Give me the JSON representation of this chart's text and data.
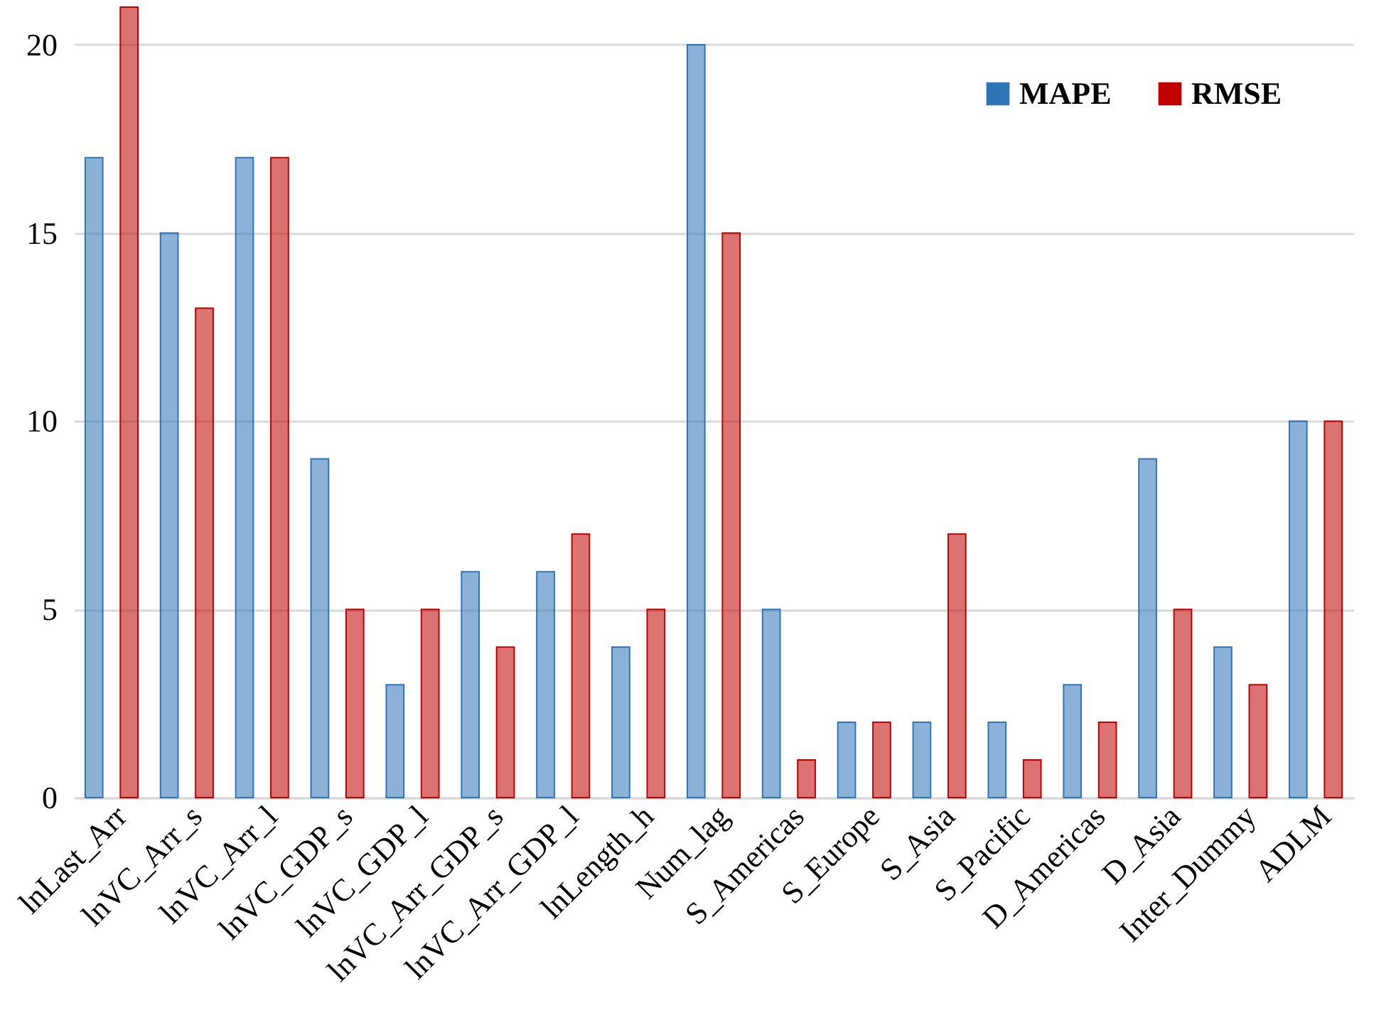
{
  "chart_data": {
    "type": "bar",
    "categories": [
      "lnLast_Arr",
      "lnVC_Arr_s",
      "lnVC_Arr_l",
      "lnVC_GDP_s",
      "lnVC_GDP_l",
      "lnVC_Arr_GDP_s",
      "lnVC_Arr_GDP_l",
      "lnLength_h",
      "Num_lag",
      "S_Americas",
      "S_Europe",
      "S_Asia",
      "S_Pacific",
      "D_Americas",
      "D_Asia",
      "Inter_Dummy",
      "ADLM"
    ],
    "series": [
      {
        "name": "MAPE",
        "color": "#2e75b6",
        "values": [
          17,
          15,
          17,
          9,
          3,
          6,
          6,
          4,
          20,
          5,
          2,
          2,
          2,
          3,
          9,
          4,
          10
        ]
      },
      {
        "name": "RMSE",
        "color": "#c00000",
        "values": [
          21,
          13,
          17,
          5,
          5,
          4,
          7,
          5,
          15,
          1,
          2,
          7,
          1,
          2,
          5,
          3,
          10
        ]
      }
    ],
    "ylim": [
      0,
      21
    ],
    "yticks": [
      0,
      5,
      10,
      15,
      20
    ],
    "grid": "y",
    "legend": "top right"
  }
}
